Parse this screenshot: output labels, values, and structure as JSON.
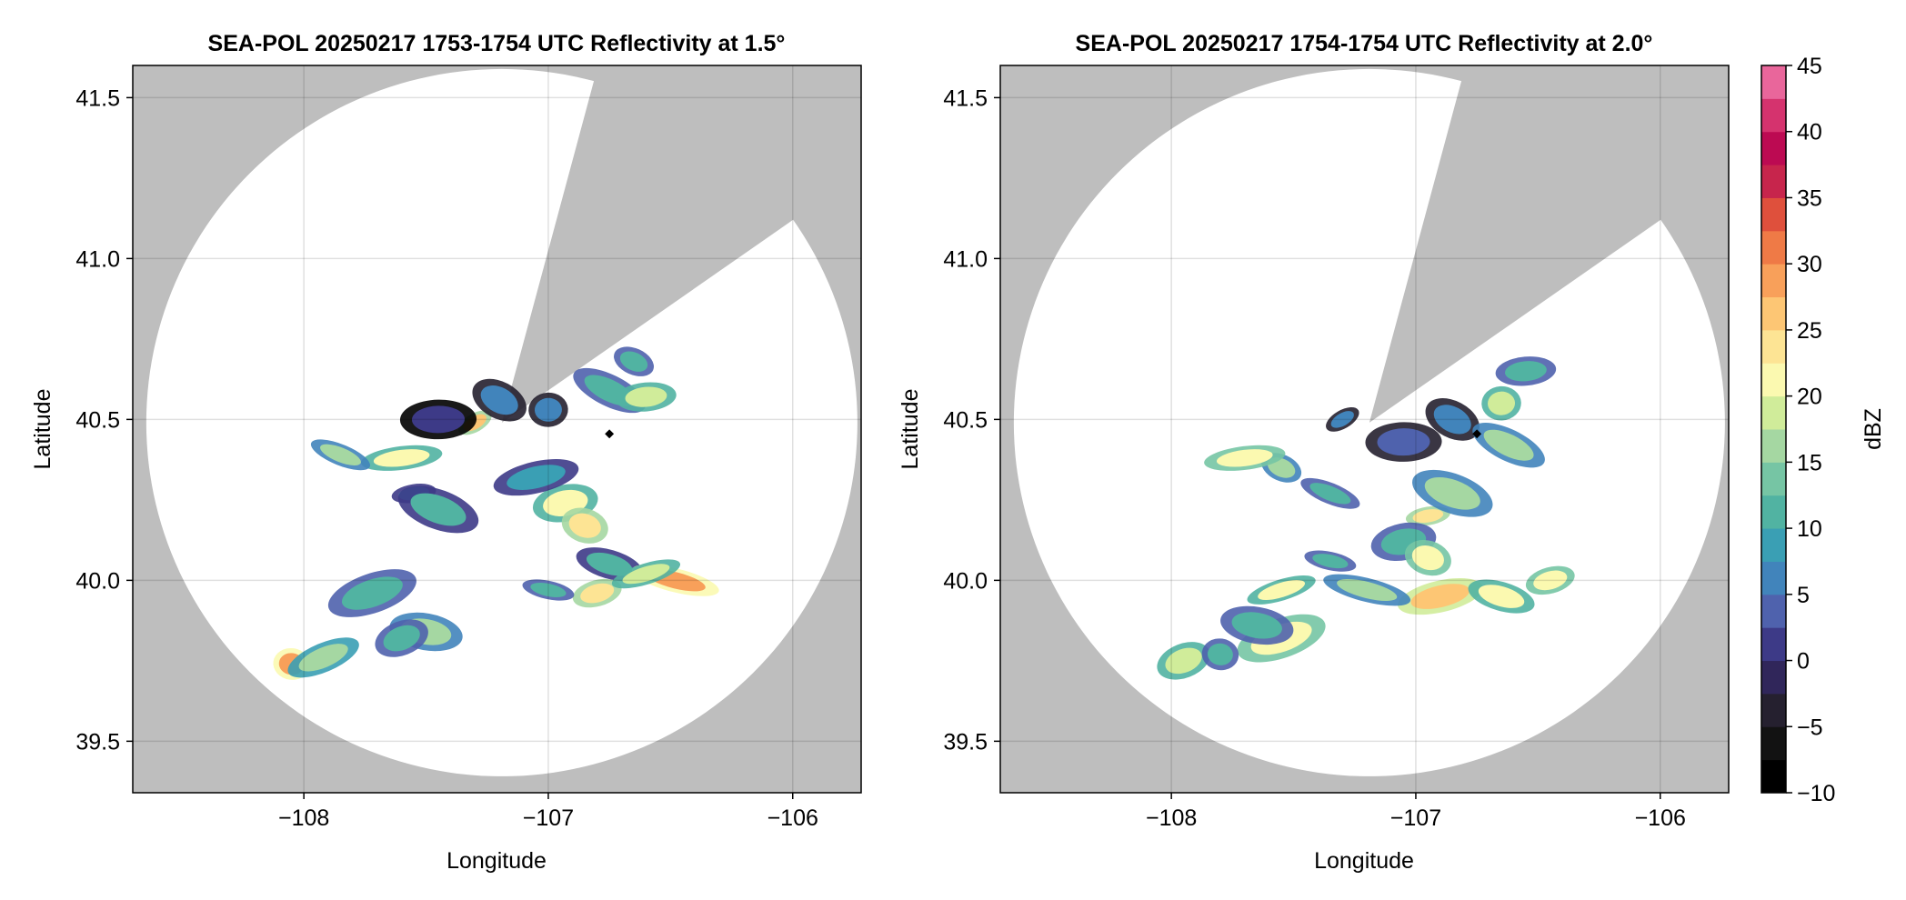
{
  "chart_data": [
    {
      "type": "heatmap",
      "title": "SEA-POL 20250217 1753-1754 UTC Reflectivity at 1.5°",
      "xlabel": "Longitude",
      "ylabel": "Latitude",
      "xlim": [
        -108.7,
        -105.72
      ],
      "ylim": [
        39.34,
        41.6
      ],
      "xticks": [
        -108,
        -107,
        -106
      ],
      "xtick_labels": [
        "−108",
        "−107",
        "−106"
      ],
      "yticks": [
        39.5,
        40.0,
        40.5,
        41.0,
        41.5
      ],
      "ytick_labels": [
        "39.5",
        "40.0",
        "40.5",
        "41.0",
        "41.5"
      ],
      "grid": true,
      "no_data_color": "#bebebe",
      "radar_center": [
        -107.19,
        40.49
      ],
      "coverage_radius_deg_lat": 1.1,
      "blocked_sector_azimuths_deg": [
        [
          15,
          55
        ]
      ],
      "marker": {
        "lon": -106.75,
        "lat": 40.455,
        "color": "#000000"
      },
      "echoes": [
        {
          "lon": -107.3,
          "lat": 40.49,
          "dbz": 25
        },
        {
          "lon": -107.45,
          "lat": 40.5,
          "dbz": 0
        },
        {
          "lon": -107.2,
          "lat": 40.56,
          "dbz": 5
        },
        {
          "lon": -107.0,
          "lat": 40.53,
          "dbz": 5
        },
        {
          "lon": -106.75,
          "lat": 40.59,
          "dbz": 12
        },
        {
          "lon": -106.6,
          "lat": 40.57,
          "dbz": 18
        },
        {
          "lon": -106.65,
          "lat": 40.68,
          "dbz": 12
        },
        {
          "lon": -107.6,
          "lat": 40.38,
          "dbz": 20
        },
        {
          "lon": -107.85,
          "lat": 40.39,
          "dbz": 15
        },
        {
          "lon": -107.55,
          "lat": 40.27,
          "dbz": 8
        },
        {
          "lon": -107.45,
          "lat": 40.22,
          "dbz": 10
        },
        {
          "lon": -106.93,
          "lat": 40.24,
          "dbz": 20
        },
        {
          "lon": -106.85,
          "lat": 40.17,
          "dbz": 24
        },
        {
          "lon": -107.05,
          "lat": 40.32,
          "dbz": 8
        },
        {
          "lon": -106.75,
          "lat": 40.05,
          "dbz": 10
        },
        {
          "lon": -106.8,
          "lat": 39.96,
          "dbz": 23
        },
        {
          "lon": -106.48,
          "lat": 40.0,
          "dbz": 28
        },
        {
          "lon": -106.6,
          "lat": 40.02,
          "dbz": 18
        },
        {
          "lon": -107.0,
          "lat": 39.97,
          "dbz": 12
        },
        {
          "lon": -107.72,
          "lat": 39.96,
          "dbz": 12
        },
        {
          "lon": -107.5,
          "lat": 39.84,
          "dbz": 15
        },
        {
          "lon": -107.6,
          "lat": 39.82,
          "dbz": 12
        },
        {
          "lon": -108.05,
          "lat": 39.74,
          "dbz": 28
        },
        {
          "lon": -107.92,
          "lat": 39.76,
          "dbz": 16
        }
      ]
    },
    {
      "type": "heatmap",
      "title": "SEA-POL 20250217 1754-1754 UTC Reflectivity at 2.0°",
      "xlabel": "Longitude",
      "ylabel": "Latitude",
      "xlim": [
        -108.7,
        -105.72
      ],
      "ylim": [
        39.34,
        41.6
      ],
      "xticks": [
        -108,
        -107,
        -106
      ],
      "xtick_labels": [
        "−108",
        "−107",
        "−106"
      ],
      "yticks": [
        39.5,
        40.0,
        40.5,
        41.0,
        41.5
      ],
      "ytick_labels": [
        "39.5",
        "40.0",
        "40.5",
        "41.0",
        "41.5"
      ],
      "grid": true,
      "no_data_color": "#bebebe",
      "radar_center": [
        -107.19,
        40.49
      ],
      "coverage_radius_deg_lat": 1.1,
      "blocked_sector_azimuths_deg": [
        [
          15,
          55
        ]
      ],
      "marker": {
        "lon": -106.75,
        "lat": 40.455,
        "color": "#000000"
      },
      "echoes": [
        {
          "lon": -107.3,
          "lat": 40.5,
          "dbz": 5
        },
        {
          "lon": -107.05,
          "lat": 40.43,
          "dbz": 3
        },
        {
          "lon": -106.85,
          "lat": 40.5,
          "dbz": 5
        },
        {
          "lon": -106.65,
          "lat": 40.55,
          "dbz": 18
        },
        {
          "lon": -106.62,
          "lat": 40.42,
          "dbz": 15
        },
        {
          "lon": -106.55,
          "lat": 40.65,
          "dbz": 12
        },
        {
          "lon": -107.55,
          "lat": 40.35,
          "dbz": 15
        },
        {
          "lon": -107.7,
          "lat": 40.38,
          "dbz": 22
        },
        {
          "lon": -107.35,
          "lat": 40.27,
          "dbz": 12
        },
        {
          "lon": -106.95,
          "lat": 40.2,
          "dbz": 24
        },
        {
          "lon": -106.85,
          "lat": 40.27,
          "dbz": 15
        },
        {
          "lon": -107.05,
          "lat": 40.12,
          "dbz": 12
        },
        {
          "lon": -106.95,
          "lat": 40.07,
          "dbz": 22
        },
        {
          "lon": -106.9,
          "lat": 39.95,
          "dbz": 27
        },
        {
          "lon": -106.65,
          "lat": 39.95,
          "dbz": 20
        },
        {
          "lon": -106.45,
          "lat": 40.0,
          "dbz": 22
        },
        {
          "lon": -107.2,
          "lat": 39.97,
          "dbz": 15
        },
        {
          "lon": -107.55,
          "lat": 39.97,
          "dbz": 20
        },
        {
          "lon": -107.35,
          "lat": 40.06,
          "dbz": 12
        },
        {
          "lon": -107.55,
          "lat": 39.82,
          "dbz": 22
        },
        {
          "lon": -107.65,
          "lat": 39.86,
          "dbz": 12
        },
        {
          "lon": -107.95,
          "lat": 39.75,
          "dbz": 18
        },
        {
          "lon": -107.8,
          "lat": 39.77,
          "dbz": 12
        }
      ]
    }
  ],
  "colorbar": {
    "label": "dBZ",
    "min": -10,
    "max": 45,
    "step": 2.5,
    "ticks": [
      -10,
      -5,
      0,
      5,
      10,
      15,
      20,
      25,
      30,
      35,
      40,
      45
    ],
    "tick_labels": [
      "−10",
      "−5",
      "0",
      "5",
      "10",
      "15",
      "20",
      "25",
      "30",
      "35",
      "40",
      "45"
    ],
    "colors": [
      "#000000",
      "#121212",
      "#25202f",
      "#30265a",
      "#3d3a87",
      "#4f62ad",
      "#4184bb",
      "#3a9fb4",
      "#51b3a2",
      "#76c5a4",
      "#a5d7a2",
      "#d0ec9a",
      "#fbf9b0",
      "#fde494",
      "#fdc674",
      "#f8a05a",
      "#ef7a46",
      "#df503c",
      "#c7254c",
      "#bc0a52",
      "#d5336e",
      "#e9669b",
      "#eea2c9",
      "#d5a7d4",
      "#9d77b6",
      "#7b3f98",
      "#4a1466"
    ]
  }
}
